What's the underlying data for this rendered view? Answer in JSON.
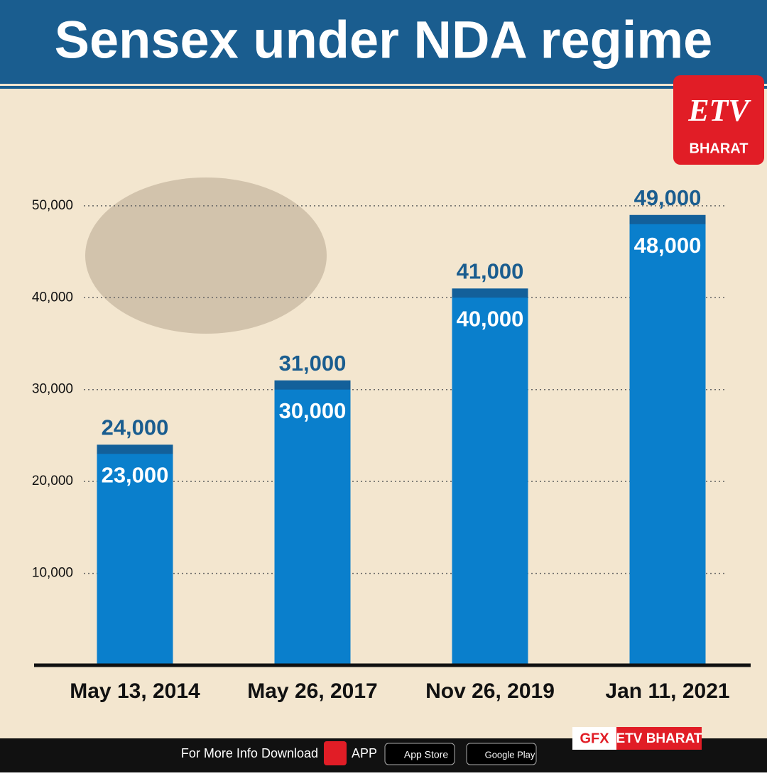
{
  "chart_data": {
    "type": "bar",
    "title": "Sensex under NDA regime",
    "categories": [
      "May 13, 2014",
      "May 26, 2017",
      "Nov 26, 2019",
      "Jan 11, 2021"
    ],
    "series": [
      {
        "color": "#13609a",
        "values": [
          24000,
          31000,
          41000,
          49000
        ],
        "value_labels": [
          "24,000",
          "31,000",
          "41,000",
          "49,000"
        ]
      },
      {
        "color": "#0a7fcc",
        "values": [
          23000,
          30000,
          40000,
          48000
        ],
        "value_labels": [
          "23,000",
          "30,000",
          "40,000",
          "48,000"
        ]
      }
    ],
    "ylim": [
      0,
      53000
    ],
    "yticks": [
      {
        "value": 10000,
        "label": "10,000"
      },
      {
        "value": 20000,
        "label": "20,000"
      },
      {
        "value": 30000,
        "label": "30,000"
      },
      {
        "value": 40000,
        "label": "40,000"
      },
      {
        "value": 50000,
        "label": "50,000"
      }
    ],
    "grid": true
  },
  "logo": {
    "mark": "ETV",
    "name": "BHARAT"
  },
  "footer": {
    "text": "For More Info Download",
    "app": "APP",
    "app_store": "App Store",
    "google_play": "Google Play",
    "gfx": "GFX",
    "credit": "ETV BHARAT"
  }
}
